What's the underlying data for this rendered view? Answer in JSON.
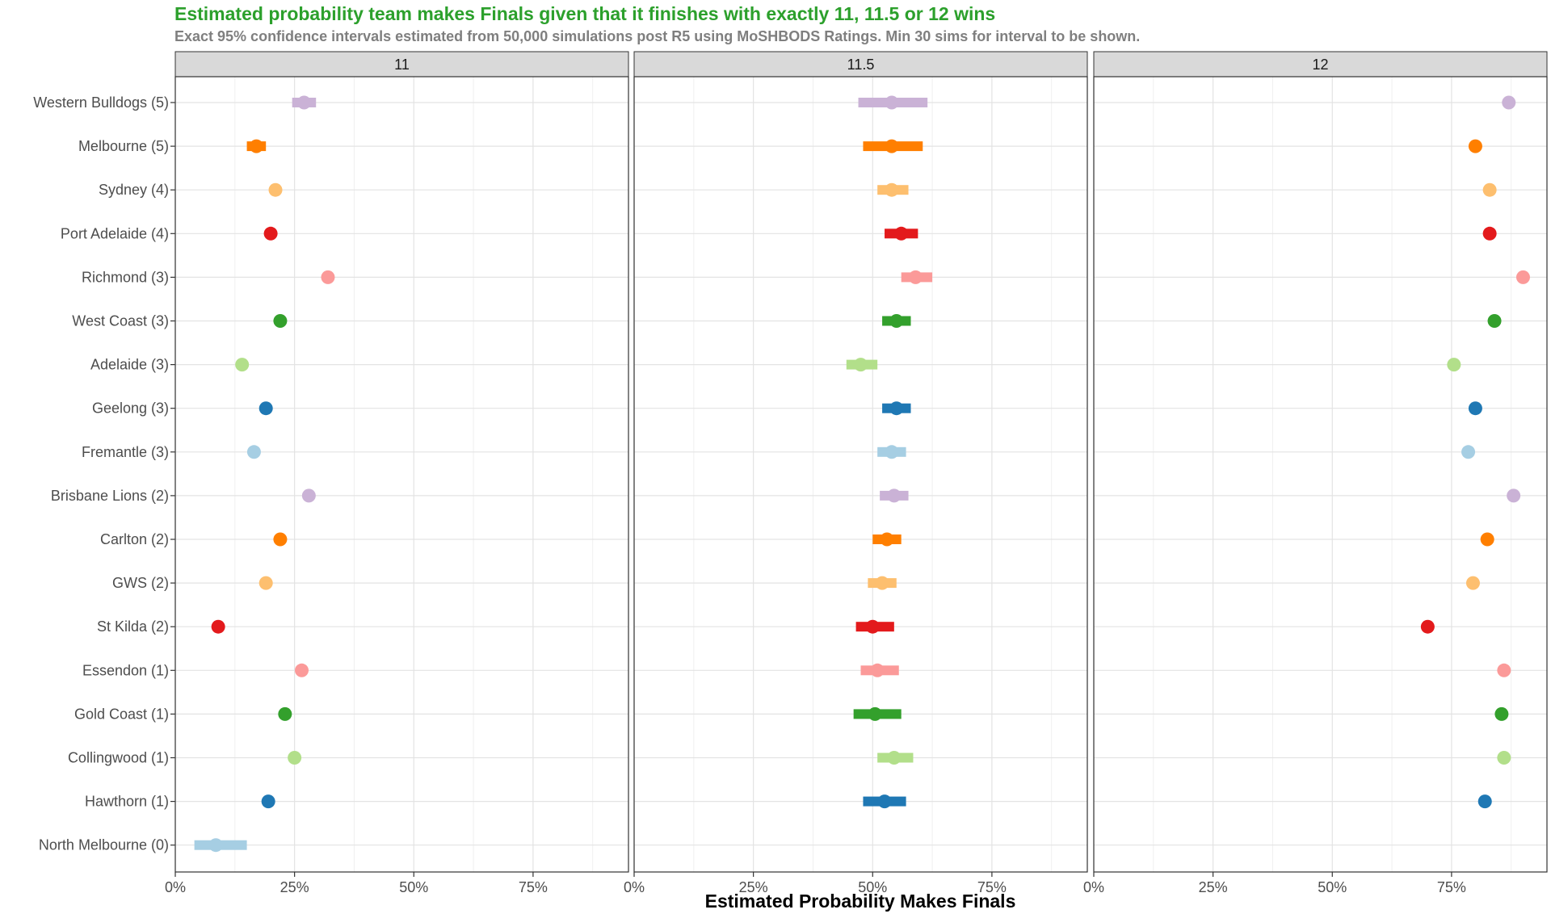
{
  "chart_data": {
    "type": "scatter",
    "title": "Estimated probability team makes Finals given that it finishes with exactly 11, 11.5 or 12 wins",
    "subtitle": "Exact 95% confidence intervals estimated from 50,000 simulations post R5 using MoSHBODS Ratings. Min 30 sims for interval to be shown.",
    "xlabel": "Estimated Probability Makes Finals",
    "xlim": [
      0,
      0.95
    ],
    "x_ticks": [
      0,
      0.25,
      0.5,
      0.75
    ],
    "x_tick_labels": [
      "0%",
      "25%",
      "50%",
      "75%"
    ],
    "grid": true,
    "legend": "none",
    "panels": [
      "11",
      "11.5",
      "12"
    ],
    "teams": [
      {
        "label": "Western Bulldogs (5)",
        "color": "#cab2d6",
        "values": [
          {
            "p": 0.27,
            "lo": 0.245,
            "hi": 0.295
          },
          {
            "p": 0.54,
            "lo": 0.47,
            "hi": 0.615
          },
          {
            "p": 0.87,
            "lo": null,
            "hi": null
          }
        ]
      },
      {
        "label": "Melbourne (5)",
        "color": "#ff7f00",
        "values": [
          {
            "p": 0.17,
            "lo": 0.15,
            "hi": 0.19
          },
          {
            "p": 0.54,
            "lo": 0.48,
            "hi": 0.605
          },
          {
            "p": 0.8,
            "lo": null,
            "hi": null
          }
        ]
      },
      {
        "label": "Sydney (4)",
        "color": "#fdbf6f",
        "values": [
          {
            "p": 0.21,
            "lo": null,
            "hi": null
          },
          {
            "p": 0.54,
            "lo": 0.51,
            "hi": 0.575
          },
          {
            "p": 0.83,
            "lo": null,
            "hi": null
          }
        ]
      },
      {
        "label": "Port Adelaide (4)",
        "color": "#e31a1c",
        "values": [
          {
            "p": 0.2,
            "lo": null,
            "hi": null
          },
          {
            "p": 0.56,
            "lo": 0.525,
            "hi": 0.595
          },
          {
            "p": 0.83,
            "lo": null,
            "hi": null
          }
        ]
      },
      {
        "label": "Richmond (3)",
        "color": "#fb9a99",
        "values": [
          {
            "p": 0.32,
            "lo": null,
            "hi": null
          },
          {
            "p": 0.59,
            "lo": 0.56,
            "hi": 0.625
          },
          {
            "p": 0.9,
            "lo": null,
            "hi": null
          }
        ]
      },
      {
        "label": "West Coast (3)",
        "color": "#33a02c",
        "values": [
          {
            "p": 0.22,
            "lo": null,
            "hi": null
          },
          {
            "p": 0.55,
            "lo": 0.52,
            "hi": 0.58
          },
          {
            "p": 0.84,
            "lo": null,
            "hi": null
          }
        ]
      },
      {
        "label": "Adelaide (3)",
        "color": "#b2df8a",
        "values": [
          {
            "p": 0.14,
            "lo": null,
            "hi": null
          },
          {
            "p": 0.475,
            "lo": 0.445,
            "hi": 0.51
          },
          {
            "p": 0.755,
            "lo": null,
            "hi": null
          }
        ]
      },
      {
        "label": "Geelong (3)",
        "color": "#1f78b4",
        "values": [
          {
            "p": 0.19,
            "lo": null,
            "hi": null
          },
          {
            "p": 0.55,
            "lo": 0.52,
            "hi": 0.58
          },
          {
            "p": 0.8,
            "lo": null,
            "hi": null
          }
        ]
      },
      {
        "label": "Fremantle (3)",
        "color": "#a6cee3",
        "values": [
          {
            "p": 0.165,
            "lo": null,
            "hi": null
          },
          {
            "p": 0.54,
            "lo": 0.51,
            "hi": 0.57
          },
          {
            "p": 0.785,
            "lo": null,
            "hi": null
          }
        ]
      },
      {
        "label": "Brisbane Lions (2)",
        "color": "#cab2d6",
        "values": [
          {
            "p": 0.28,
            "lo": null,
            "hi": null
          },
          {
            "p": 0.545,
            "lo": 0.515,
            "hi": 0.575
          },
          {
            "p": 0.88,
            "lo": null,
            "hi": null
          }
        ]
      },
      {
        "label": "Carlton (2)",
        "color": "#ff7f00",
        "values": [
          {
            "p": 0.22,
            "lo": null,
            "hi": null
          },
          {
            "p": 0.53,
            "lo": 0.5,
            "hi": 0.56
          },
          {
            "p": 0.825,
            "lo": null,
            "hi": null
          }
        ]
      },
      {
        "label": "GWS (2)",
        "color": "#fdbf6f",
        "values": [
          {
            "p": 0.19,
            "lo": null,
            "hi": null
          },
          {
            "p": 0.52,
            "lo": 0.49,
            "hi": 0.55
          },
          {
            "p": 0.795,
            "lo": null,
            "hi": null
          }
        ]
      },
      {
        "label": "St Kilda (2)",
        "color": "#e31a1c",
        "values": [
          {
            "p": 0.09,
            "lo": null,
            "hi": null
          },
          {
            "p": 0.5,
            "lo": 0.465,
            "hi": 0.545
          },
          {
            "p": 0.7,
            "lo": null,
            "hi": null
          }
        ]
      },
      {
        "label": "Essendon (1)",
        "color": "#fb9a99",
        "values": [
          {
            "p": 0.265,
            "lo": null,
            "hi": null
          },
          {
            "p": 0.51,
            "lo": 0.475,
            "hi": 0.555
          },
          {
            "p": 0.86,
            "lo": null,
            "hi": null
          }
        ]
      },
      {
        "label": "Gold Coast (1)",
        "color": "#33a02c",
        "values": [
          {
            "p": 0.23,
            "lo": null,
            "hi": null
          },
          {
            "p": 0.505,
            "lo": 0.46,
            "hi": 0.56
          },
          {
            "p": 0.855,
            "lo": 0.845,
            "hi": 0.865
          }
        ]
      },
      {
        "label": "Collingwood (1)",
        "color": "#b2df8a",
        "values": [
          {
            "p": 0.25,
            "lo": null,
            "hi": null
          },
          {
            "p": 0.545,
            "lo": 0.51,
            "hi": 0.585
          },
          {
            "p": 0.86,
            "lo": null,
            "hi": null
          }
        ]
      },
      {
        "label": "Hawthorn (1)",
        "color": "#1f78b4",
        "values": [
          {
            "p": 0.195,
            "lo": null,
            "hi": null
          },
          {
            "p": 0.525,
            "lo": 0.48,
            "hi": 0.57
          },
          {
            "p": 0.82,
            "lo": null,
            "hi": null
          }
        ]
      },
      {
        "label": "North Melbourne (0)",
        "color": "#a6cee3",
        "values": [
          {
            "p": 0.085,
            "lo": 0.04,
            "hi": 0.15
          },
          {
            "p": null,
            "lo": null,
            "hi": null
          },
          {
            "p": null,
            "lo": null,
            "hi": null
          }
        ]
      }
    ]
  }
}
